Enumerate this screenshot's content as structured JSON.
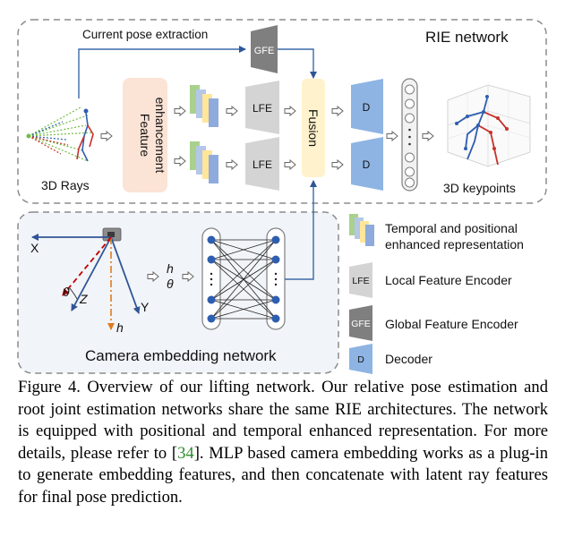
{
  "rie": {
    "title": "RIE network",
    "current_pose_label": "Current pose extraction",
    "gfe": "GFE",
    "feature_enhancement_line1": "Feature",
    "feature_enhancement_line2": "enhancement",
    "lfe": "LFE",
    "fusion": "Fusion",
    "decoder": "D",
    "rays_label": "3D Rays",
    "keypoints_label": "3D keypoints"
  },
  "camera": {
    "title": "Camera embedding network",
    "axis_x": "X",
    "axis_y": "Y",
    "axis_z": "Z",
    "theta": "θ",
    "h": "h",
    "out_h": "h",
    "out_theta": "θ"
  },
  "legend": {
    "temporal_line1": "Temporal and positional",
    "temporal_line2": "enhanced representation",
    "lfe_icon": "LFE",
    "lfe_text": "Local Feature Encoder",
    "gfe_icon": "GFE",
    "gfe_text": "Global Feature Encoder",
    "d_icon": "D",
    "d_text": "Decoder"
  },
  "colors": {
    "dashed_border": "#8c8c8c",
    "camera_bg": "#f1f4f8",
    "feature_box": "#fbe3d5",
    "fusion_box": "#fff2cc",
    "lfe_gray": "#d4d4d4",
    "gfe_gray": "#7f7f7f",
    "decoder_blue": "#8eb4e3",
    "arrow_blue": "#3a6aa8",
    "skeleton_red": "#c8312b",
    "skeleton_blue": "#2e5eb0",
    "caption_link": "#2e8b2e"
  },
  "caption": {
    "before_ref": "Figure 4. Overview of our lifting network. Our relative pose estimation and root joint estimation networks share the same RIE architectures. The network is equipped with positional and temporal enhanced representation. For more details, please refer to [",
    "ref": "34",
    "after_ref": "]. MLP based camera embedding works as a plug-in to generate embedding features, and then concatenate with latent ray features for final pose prediction."
  }
}
